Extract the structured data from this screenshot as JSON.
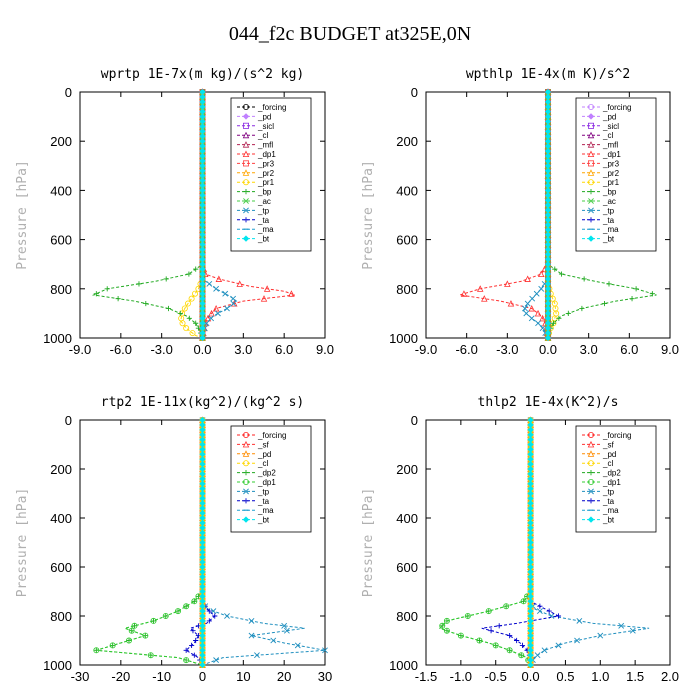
{
  "page_title": "044_f2c  BUDGET at325E,0N",
  "chart_data": [
    {
      "type": "line",
      "title": "wprtp  1E-7x(m kg)/(s^2 kg)",
      "ylabel": "Pressure [hPa]",
      "xlim": [
        -9,
        9
      ],
      "ylim": [
        1000,
        0
      ],
      "xticks": [
        "-9.0",
        "-6.0",
        "-3.0",
        "0.0",
        "3.0",
        "6.0",
        "9.0"
      ],
      "yticks": [
        "0",
        "200",
        "400",
        "600",
        "800",
        "1000"
      ],
      "legend_position": "top-right",
      "series": [
        {
          "name": "_forcing",
          "color": "#000000",
          "marker": "circle",
          "p": [
            0,
            1000
          ],
          "x": [
            0,
            0
          ]
        },
        {
          "name": "_pd",
          "color": "#c080ff",
          "marker": "diamond",
          "p": [
            0,
            1000
          ],
          "x": [
            0,
            0
          ]
        },
        {
          "name": "_sicl",
          "color": "#8a2be2",
          "marker": "square",
          "p": [
            0,
            1000
          ],
          "x": [
            0,
            0
          ]
        },
        {
          "name": "_cl",
          "color": "#800080",
          "marker": "triangle",
          "p": [
            0,
            1000
          ],
          "x": [
            0,
            0
          ]
        },
        {
          "name": "_mfl",
          "color": "#b22252",
          "marker": "triangle",
          "p": [
            0,
            1000
          ],
          "x": [
            0,
            0
          ]
        },
        {
          "name": "_dp1",
          "color": "#ff3030",
          "marker": "triangle",
          "p": [
            0,
            700,
            740,
            760,
            790,
            810,
            825,
            850,
            880,
            910,
            940,
            970,
            1000
          ],
          "x": [
            0,
            0,
            0.2,
            1.2,
            3.5,
            6.0,
            6.8,
            3.0,
            1.0,
            0.5,
            0.2,
            0.1,
            0
          ]
        },
        {
          "name": "_pr3",
          "color": "#ff4040",
          "marker": "square",
          "p": [
            0,
            1000
          ],
          "x": [
            0,
            0
          ]
        },
        {
          "name": "_pr2",
          "color": "#ffa500",
          "marker": "triangle",
          "p": [
            0,
            1000
          ],
          "x": [
            0,
            0
          ]
        },
        {
          "name": "_pr1",
          "color": "#ffd700",
          "marker": "circle",
          "p": [
            0,
            760,
            800,
            840,
            870,
            900,
            930,
            960,
            990,
            1000
          ],
          "x": [
            0,
            0,
            -0.3,
            -0.8,
            -1.2,
            -1.5,
            -1.6,
            -1.2,
            -0.5,
            0
          ]
        },
        {
          "name": "_bp",
          "color": "#22aa22",
          "marker": "cross",
          "p": [
            0,
            700,
            740,
            770,
            800,
            825,
            850,
            880,
            910,
            940,
            970,
            1000
          ],
          "x": [
            0,
            0,
            -1.0,
            -3.5,
            -7.0,
            -8.0,
            -5.0,
            -2.5,
            -1.2,
            -0.5,
            -0.2,
            0
          ]
        },
        {
          "name": "_ac",
          "color": "#44cc44",
          "marker": "x",
          "p": [
            0,
            1000
          ],
          "x": [
            0,
            0
          ]
        },
        {
          "name": "_tp",
          "color": "#1f8fbf",
          "marker": "x",
          "p": [
            0,
            760,
            800,
            830,
            850,
            880,
            910,
            940,
            970,
            1000
          ],
          "x": [
            0,
            0,
            1.0,
            2.0,
            2.5,
            1.8,
            0.8,
            0.3,
            0.1,
            0
          ]
        },
        {
          "name": "_ta",
          "color": "#0000cc",
          "marker": "cross",
          "p": [
            0,
            1000
          ],
          "x": [
            0,
            0
          ]
        },
        {
          "name": "_ma",
          "color": "#1f9fd0",
          "marker": "dash",
          "p": [
            0,
            1000
          ],
          "x": [
            0,
            0
          ]
        },
        {
          "name": "_bt",
          "color": "#00e5ee",
          "marker": "diamond",
          "p": [
            0,
            1000
          ],
          "x": [
            0,
            0
          ]
        }
      ]
    },
    {
      "type": "line",
      "title": "wpthlp  1E-4x(m K)/s^2",
      "ylabel": "Pressure [hPa]",
      "xlim": [
        -9,
        9
      ],
      "ylim": [
        1000,
        0
      ],
      "xticks": [
        "-9.0",
        "-6.0",
        "-3.0",
        "0.0",
        "3.0",
        "6.0",
        "9.0"
      ],
      "yticks": [
        "0",
        "200",
        "400",
        "600",
        "800",
        "1000"
      ],
      "legend_position": "top-right",
      "series": [
        {
          "name": "_forcing",
          "color": "#c080ff",
          "marker": "circle",
          "p": [
            0,
            1000
          ],
          "x": [
            0,
            0
          ]
        },
        {
          "name": "_pd",
          "color": "#c080ff",
          "marker": "diamond",
          "p": [
            0,
            1000
          ],
          "x": [
            0,
            0
          ]
        },
        {
          "name": "_sicl",
          "color": "#8a2be2",
          "marker": "square",
          "p": [
            0,
            1000
          ],
          "x": [
            0,
            0
          ]
        },
        {
          "name": "_cl",
          "color": "#800080",
          "marker": "triangle",
          "p": [
            0,
            1000
          ],
          "x": [
            0,
            0
          ]
        },
        {
          "name": "_mfl",
          "color": "#b22252",
          "marker": "triangle",
          "p": [
            0,
            1000
          ],
          "x": [
            0,
            0
          ]
        },
        {
          "name": "_dp1",
          "color": "#ff3030",
          "marker": "triangle",
          "p": [
            0,
            700,
            740,
            770,
            800,
            825,
            850,
            880,
            910,
            940,
            970,
            1000
          ],
          "x": [
            0,
            0,
            -0.5,
            -2.0,
            -5.0,
            -6.5,
            -3.5,
            -1.2,
            -0.5,
            -0.2,
            -0.1,
            0
          ]
        },
        {
          "name": "_pr3",
          "color": "#ff4040",
          "marker": "square",
          "p": [
            0,
            1000
          ],
          "x": [
            0,
            0
          ]
        },
        {
          "name": "_pr2",
          "color": "#ffa500",
          "marker": "triangle",
          "p": [
            0,
            1000
          ],
          "x": [
            0,
            0
          ]
        },
        {
          "name": "_pr1",
          "color": "#ffd700",
          "marker": "circle",
          "p": [
            0,
            780,
            820,
            860,
            900,
            940,
            970,
            1000
          ],
          "x": [
            0,
            0,
            0.2,
            0.5,
            0.6,
            0.4,
            0.1,
            0
          ]
        },
        {
          "name": "_bp",
          "color": "#22aa22",
          "marker": "cross",
          "p": [
            0,
            700,
            740,
            770,
            800,
            825,
            850,
            880,
            910,
            940,
            970,
            1000
          ],
          "x": [
            0,
            0,
            1.0,
            3.5,
            6.5,
            8.0,
            5.0,
            2.5,
            1.0,
            0.4,
            0.1,
            0
          ]
        },
        {
          "name": "_ac",
          "color": "#44cc44",
          "marker": "x",
          "p": [
            0,
            1000
          ],
          "x": [
            0,
            0
          ]
        },
        {
          "name": "_tp",
          "color": "#1f8fbf",
          "marker": "x",
          "p": [
            0,
            760,
            800,
            830,
            860,
            890,
            920,
            950,
            980,
            1000
          ],
          "x": [
            0,
            0,
            -0.5,
            -1.0,
            -1.5,
            -1.8,
            -1.2,
            -0.5,
            -0.2,
            0
          ]
        },
        {
          "name": "_ta",
          "color": "#0000cc",
          "marker": "cross",
          "p": [
            0,
            1000
          ],
          "x": [
            0,
            0
          ]
        },
        {
          "name": "_ma",
          "color": "#1f9fd0",
          "marker": "dash",
          "p": [
            0,
            1000
          ],
          "x": [
            0,
            0
          ]
        },
        {
          "name": "_bt",
          "color": "#00e5ee",
          "marker": "diamond",
          "p": [
            0,
            1000
          ],
          "x": [
            0,
            0
          ]
        }
      ]
    },
    {
      "type": "line",
      "title": "rtp2  1E-11x(kg^2)/(kg^2 s)",
      "ylabel": "Pressure [hPa]",
      "xlim": [
        -30,
        30
      ],
      "ylim": [
        1000,
        0
      ],
      "xticks": [
        "-30",
        "-20",
        "-10",
        "0",
        "10",
        "20",
        "30"
      ],
      "yticks": [
        "0",
        "200",
        "400",
        "600",
        "800",
        "1000"
      ],
      "legend_position": "top-right",
      "series": [
        {
          "name": "_forcing",
          "color": "#ff2020",
          "marker": "circle",
          "p": [
            0,
            1000
          ],
          "x": [
            0,
            0
          ]
        },
        {
          "name": "_sf",
          "color": "#ff3030",
          "marker": "triangle",
          "p": [
            0,
            1000
          ],
          "x": [
            0,
            0
          ]
        },
        {
          "name": "_pd",
          "color": "#ff8c00",
          "marker": "triangle",
          "p": [
            0,
            1000
          ],
          "x": [
            0,
            0
          ]
        },
        {
          "name": "_cl",
          "color": "#ffd700",
          "marker": "circle",
          "p": [
            0,
            1000
          ],
          "x": [
            0,
            0
          ]
        },
        {
          "name": "_dp2",
          "color": "#22aa22",
          "marker": "cross",
          "p": [
            0,
            700,
            740,
            780,
            820,
            850,
            880,
            910,
            940,
            970,
            1000
          ],
          "x": [
            0,
            0,
            -2,
            -6,
            -12,
            -19,
            -14,
            -20,
            -26,
            -6,
            0
          ]
        },
        {
          "name": "_dp1",
          "color": "#33cc33",
          "marker": "circle",
          "p": [
            0,
            700,
            740,
            780,
            820,
            850,
            880,
            910,
            940,
            970,
            1000
          ],
          "x": [
            0,
            0,
            -2,
            -6,
            -12,
            -19,
            -14,
            -20,
            -26,
            -6,
            0
          ]
        },
        {
          "name": "_tp",
          "color": "#1f8fbf",
          "marker": "x",
          "p": [
            0,
            740,
            770,
            800,
            830,
            850,
            880,
            910,
            940,
            970,
            1000
          ],
          "x": [
            0,
            0,
            1,
            6,
            15,
            25,
            12,
            20,
            30,
            5,
            0
          ]
        },
        {
          "name": "_ta",
          "color": "#0000cc",
          "marker": "cross",
          "p": [
            0,
            740,
            770,
            800,
            830,
            850,
            880,
            910,
            940,
            970,
            1000
          ],
          "x": [
            0,
            0,
            1,
            3,
            1,
            -3,
            -1,
            -2,
            -4,
            -1,
            0
          ]
        },
        {
          "name": "_ma",
          "color": "#1f9fd0",
          "marker": "dash",
          "p": [
            0,
            1000
          ],
          "x": [
            0,
            0
          ]
        },
        {
          "name": "_bt",
          "color": "#00e5ee",
          "marker": "diamond",
          "p": [
            0,
            1000
          ],
          "x": [
            0,
            0
          ]
        }
      ]
    },
    {
      "type": "line",
      "title": "thlp2  1E-4x(K^2)/s",
      "ylabel": "Pressure [hPa]",
      "xlim": [
        -1.5,
        2.0
      ],
      "ylim": [
        1000,
        0
      ],
      "xticks": [
        "-1.5",
        "-1.0",
        "-0.5",
        "0.0",
        "0.5",
        "1.0",
        "1.5",
        "2.0"
      ],
      "yticks": [
        "0",
        "200",
        "400",
        "600",
        "800",
        "1000"
      ],
      "legend_position": "top-right",
      "series": [
        {
          "name": "_forcing",
          "color": "#ff2020",
          "marker": "circle",
          "p": [
            0,
            1000
          ],
          "x": [
            0,
            0
          ]
        },
        {
          "name": "_sf",
          "color": "#ff3030",
          "marker": "triangle",
          "p": [
            0,
            1000
          ],
          "x": [
            0,
            0
          ]
        },
        {
          "name": "_pd",
          "color": "#ff8c00",
          "marker": "triangle",
          "p": [
            0,
            1000
          ],
          "x": [
            0,
            0
          ]
        },
        {
          "name": "_cl",
          "color": "#ffd700",
          "marker": "circle",
          "p": [
            0,
            1000
          ],
          "x": [
            0,
            0
          ]
        },
        {
          "name": "_dp2",
          "color": "#22aa22",
          "marker": "cross",
          "p": [
            0,
            700,
            740,
            780,
            820,
            850,
            880,
            910,
            940,
            970,
            1000
          ],
          "x": [
            0,
            0,
            -0.1,
            -0.6,
            -1.2,
            -1.3,
            -1.0,
            -0.6,
            -0.3,
            -0.05,
            0
          ]
        },
        {
          "name": "_dp1",
          "color": "#33cc33",
          "marker": "circle",
          "p": [
            0,
            700,
            740,
            780,
            820,
            850,
            880,
            910,
            940,
            970,
            1000
          ],
          "x": [
            0,
            0,
            -0.1,
            -0.6,
            -1.2,
            -1.3,
            -1.0,
            -0.6,
            -0.3,
            -0.05,
            0
          ]
        },
        {
          "name": "_tp",
          "color": "#1f8fbf",
          "marker": "x",
          "p": [
            0,
            740,
            770,
            800,
            830,
            850,
            880,
            910,
            940,
            970,
            1000
          ],
          "x": [
            0,
            0,
            0.05,
            0.3,
            0.9,
            1.7,
            1.0,
            0.5,
            0.2,
            0.05,
            0
          ]
        },
        {
          "name": "_ta",
          "color": "#0000cc",
          "marker": "cross",
          "p": [
            0,
            740,
            770,
            800,
            830,
            850,
            880,
            910,
            940,
            970,
            1000
          ],
          "x": [
            0,
            0,
            0.2,
            0.4,
            -0.2,
            -0.7,
            -0.3,
            -0.15,
            -0.05,
            0,
            0
          ]
        },
        {
          "name": "_ma",
          "color": "#1f9fd0",
          "marker": "dash",
          "p": [
            0,
            1000
          ],
          "x": [
            0,
            0
          ]
        },
        {
          "name": "_bt",
          "color": "#00e5ee",
          "marker": "diamond",
          "p": [
            0,
            1000
          ],
          "x": [
            0,
            0
          ]
        }
      ]
    }
  ]
}
